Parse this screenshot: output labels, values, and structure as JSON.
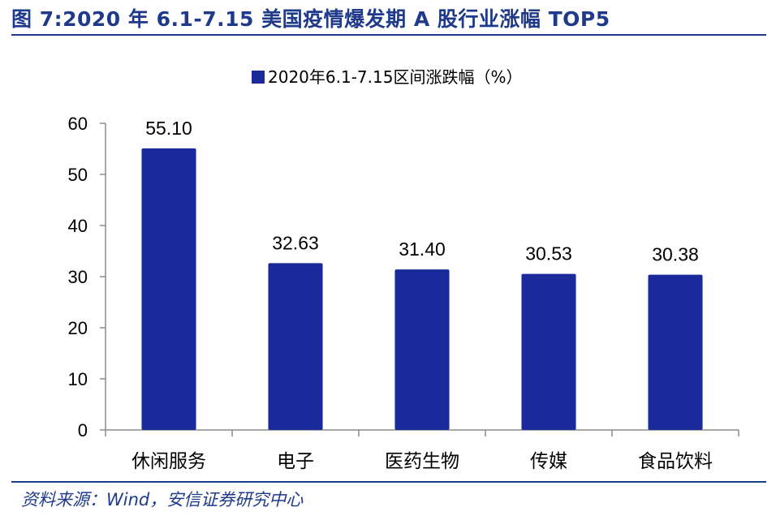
{
  "figure": {
    "title": "图 7:2020 年 6.1-7.15 美国疫情爆发期 A 股行业涨幅 TOP5",
    "source": "资料来源：Wind，安信证券研究中心"
  },
  "colors": {
    "accent": "#1f3a8a",
    "bar": "#1a2a9a",
    "axis": "#8c8c8c"
  },
  "chart_data": {
    "type": "bar",
    "title": "",
    "categories": [
      "休闲服务",
      "电子",
      "医药生物",
      "传媒",
      "食品饮料"
    ],
    "series": [
      {
        "name": "2020年6.1-7.15区间涨跌幅（%）",
        "values": [
          55.1,
          32.63,
          31.4,
          30.53,
          30.38
        ]
      }
    ],
    "data_labels": [
      "55.10",
      "32.63",
      "31.40",
      "30.53",
      "30.38"
    ],
    "xlabel": "",
    "ylabel": "",
    "ylim": [
      0,
      60
    ],
    "yticks": [
      0,
      10,
      20,
      30,
      40,
      50,
      60
    ],
    "grid": false,
    "legend_position": "top-center"
  }
}
